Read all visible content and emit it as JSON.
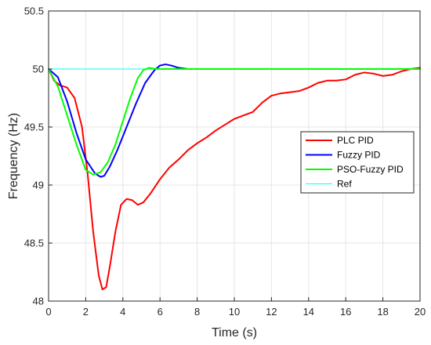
{
  "chart_data": {
    "type": "line",
    "xlabel": "Time (s)",
    "ylabel": "Frequency (Hz)",
    "xlim": [
      0,
      20
    ],
    "ylim": [
      48,
      50.5
    ],
    "xticks": [
      "0",
      "2",
      "4",
      "6",
      "8",
      "10",
      "12",
      "14",
      "16",
      "18",
      "20"
    ],
    "yticks": [
      "48",
      "48.5",
      "49",
      "49.5",
      "50",
      "50.5"
    ],
    "grid": true,
    "legend_position": "right",
    "series": [
      {
        "name": "PLC PID",
        "color": "#ff0000",
        "x": [
          0,
          0.3,
          0.6,
          1.0,
          1.4,
          1.8,
          2.1,
          2.4,
          2.7,
          2.9,
          3.1,
          3.3,
          3.6,
          3.9,
          4.2,
          4.5,
          4.8,
          5.1,
          5.5,
          6.0,
          6.5,
          7.0,
          7.5,
          8.0,
          8.5,
          9.0,
          9.5,
          10.0,
          10.5,
          11.0,
          11.5,
          12.0,
          12.5,
          13.0,
          13.5,
          14.0,
          14.5,
          15.0,
          15.5,
          16.0,
          16.5,
          17.0,
          17.5,
          18.0,
          18.5,
          19.0,
          19.5,
          20.0
        ],
        "y": [
          50.0,
          49.9,
          49.86,
          49.84,
          49.75,
          49.5,
          49.1,
          48.6,
          48.22,
          48.1,
          48.12,
          48.3,
          48.6,
          48.83,
          48.88,
          48.87,
          48.83,
          48.85,
          48.93,
          49.05,
          49.15,
          49.22,
          49.3,
          49.36,
          49.41,
          49.47,
          49.52,
          49.57,
          49.6,
          49.63,
          49.71,
          49.77,
          49.79,
          49.8,
          49.81,
          49.84,
          49.88,
          49.9,
          49.9,
          49.91,
          49.95,
          49.97,
          49.96,
          49.94,
          49.95,
          49.98,
          50.0,
          50.01
        ]
      },
      {
        "name": "Fuzzy PID",
        "color": "#0000ff",
        "x": [
          0,
          0.5,
          1.0,
          1.5,
          2.0,
          2.5,
          2.8,
          3.0,
          3.3,
          3.7,
          4.2,
          4.7,
          5.2,
          5.7,
          6.0,
          6.3,
          6.6,
          7.0,
          7.5,
          8.0,
          9.0,
          10.0,
          12.0,
          14.0,
          16.0,
          18.0,
          20.0
        ],
        "y": [
          50.0,
          49.93,
          49.72,
          49.45,
          49.22,
          49.1,
          49.07,
          49.08,
          49.16,
          49.3,
          49.5,
          49.7,
          49.88,
          49.99,
          50.03,
          50.04,
          50.03,
          50.01,
          50.0,
          50.0,
          50.0,
          50.0,
          50.0,
          50.0,
          50.0,
          50.0,
          50.0
        ]
      },
      {
        "name": "PSO-Fuzzy PID",
        "color": "#00ff00",
        "x": [
          0,
          0.5,
          1.0,
          1.5,
          2.0,
          2.4,
          2.8,
          3.2,
          3.6,
          4.0,
          4.4,
          4.8,
          5.1,
          5.4,
          5.8,
          6.2,
          7.0,
          8.0,
          10.0,
          12.0,
          14.0,
          16.0,
          18.0,
          20.0
        ],
        "y": [
          50.0,
          49.85,
          49.6,
          49.35,
          49.13,
          49.09,
          49.11,
          49.2,
          49.35,
          49.55,
          49.75,
          49.92,
          49.99,
          50.01,
          50.0,
          50.0,
          50.0,
          50.0,
          50.0,
          50.0,
          50.0,
          50.0,
          50.0,
          50.0
        ]
      },
      {
        "name": "Ref",
        "color": "#00ffff",
        "x": [
          0,
          20
        ],
        "y": [
          50.0,
          50.0
        ]
      }
    ]
  }
}
